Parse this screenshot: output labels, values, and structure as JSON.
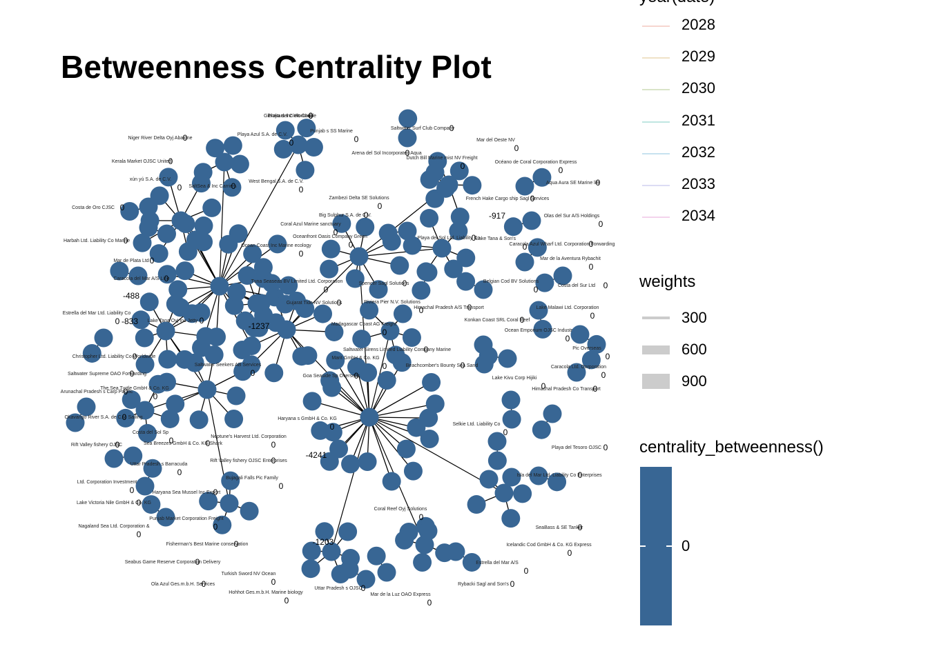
{
  "title": "Betweenness Centrality Plot",
  "legend_year": {
    "title": "year(date)",
    "items": [
      {
        "label": "2028",
        "color": "#f6d5cf"
      },
      {
        "label": "2029",
        "color": "#efe2c6"
      },
      {
        "label": "2030",
        "color": "#d9e4c8"
      },
      {
        "label": "2031",
        "color": "#bfe6e1"
      },
      {
        "label": "2032",
        "color": "#c6e2ef"
      },
      {
        "label": "2033",
        "color": "#dcdcf4"
      },
      {
        "label": "2034",
        "color": "#f3d3ec"
      }
    ]
  },
  "legend_weights": {
    "title": "weights",
    "items": [
      {
        "label": "300",
        "size": 4
      },
      {
        "label": "600",
        "size": 13
      },
      {
        "label": "900",
        "size": 22
      }
    ]
  },
  "legend_centrality": {
    "title": "centrality_betweenness()",
    "color": "#386694",
    "tick": "0"
  },
  "network": {
    "node_color": "#386694",
    "edge_color": "#000000",
    "hubs": [
      {
        "label": "Playa del Cielo Corp",
        "score": "0"
      },
      {
        "label": "Punjab s SS Marine",
        "score": "0"
      },
      {
        "label": "Saltwater Surf Club Company",
        "score": "0"
      },
      {
        "label": "Mar del Oeste NV",
        "score": "0"
      },
      {
        "label": "Niger River Delta Oyj Abalone",
        "score": "0"
      },
      {
        "label": "Playa Azul S.A. de C.V.",
        "score": "0"
      },
      {
        "label": "Arena del Sol Incorporated Aqua",
        "score": "0"
      },
      {
        "label": "Océano de Coral Corporation Express",
        "score": "0"
      },
      {
        "label": "Kerala Market OJSC United",
        "score": "0"
      },
      {
        "label": "Dutch Bill Marine mist NV Freight",
        "score": "0"
      },
      {
        "label": "Aqua Aura SE Marine life",
        "score": "0"
      },
      {
        "label": "xún yú S.A. de C.V.",
        "score": "0"
      },
      {
        "label": "SaltSea & Inc Carriers",
        "score": "0"
      },
      {
        "label": "West Bengal S.A. de C.V.",
        "score": "0"
      },
      {
        "label": "Costa de Oro CJSC",
        "score": "0"
      },
      {
        "label": "Zambezi Delta SE Solutions",
        "score": "0"
      },
      {
        "label": "French Hake Cargo ship Sagl Services",
        "score": "0"
      },
      {
        "label": "Olas del Sur A/S Holdings",
        "score": "0"
      },
      {
        "label": "Big Sulphur S.A. de C.V.",
        "score": "0"
      },
      {
        "label": "Coral Azul Marine sanctuary",
        "score": "0"
      },
      {
        "label": "Harbah Ltd. Liability Co Marine",
        "score": "0"
      },
      {
        "label": "Oceanfront Oasis Company Green",
        "score": "0"
      },
      {
        "label": "Playa del Sol Ltd. Liability Co",
        "score": "0"
      },
      {
        "label": "Lake Tana & Son's",
        "score": "0"
      },
      {
        "label": "Mar de Plata Ltd",
        "score": "0"
      },
      {
        "label": "Ocean Coast Inc Marine ecology",
        "score": "0"
      },
      {
        "label": "Caracola Azul Wharf Ltd. Corporation Forwarding",
        "score": "0"
      },
      {
        "label": "Mar de la Aventura Rybachit",
        "score": "0"
      },
      {
        "label": "Caracola del Mar A/S Line",
        "score": "0"
      },
      {
        "label": "Tuna Seaseas BV Limited Ltd. Corporation",
        "score": "0"
      },
      {
        "label": "Spencer Sagl Solutions",
        "score": "0"
      },
      {
        "label": "Belgian Cod BV Solutions",
        "score": "0"
      },
      {
        "label": "Costa del Sur Ltd",
        "score": "0"
      },
      {
        "label": "Estrella del Mar Ltd. Liability Co",
        "score": "0"
      },
      {
        "label": "Gujarat Tide NV Solutions",
        "score": "0"
      },
      {
        "label": "Riviera Pier N.V. Solutions",
        "score": "0"
      },
      {
        "label": "Himachal Pradesh A/S Transport",
        "score": "0"
      },
      {
        "label": "Lake Malawi Ltd. Corporation",
        "score": "0"
      },
      {
        "label": "Lake Tana Oyj Inc Jetty",
        "score": "0"
      },
      {
        "label": "Madagascar Coast AG Freight",
        "score": "0"
      },
      {
        "label": "Konkan Coast SRL Coral Reef",
        "score": "0"
      },
      {
        "label": "Ocean Emporium OJSC Industr",
        "score": "0"
      },
      {
        "label": "Christopher Ltd. Liability Co Worldwide",
        "score": "0"
      },
      {
        "label": "Saltwater Seekers AB Services",
        "score": "0"
      },
      {
        "label": "Saltwater Sirens Limited Liability Company Marine",
        "score": "0"
      },
      {
        "label": "Pic Overseas",
        "score": "0"
      },
      {
        "label": "Saltwater Supreme OAO Forwarding",
        "score": "0"
      },
      {
        "label": "Marit GmbH & Co. KG",
        "score": "0"
      },
      {
        "label": "Beachcomber's Bounty Sea Sand",
        "score": "0"
      },
      {
        "label": "Caracola Ltd. Corporation",
        "score": "0"
      },
      {
        "label": "Arunachal Pradesh s Carp Pacific",
        "score": "0"
      },
      {
        "label": "The Sea Turtle GmbH & Co. KG",
        "score": "0"
      },
      {
        "label": "Goa Seaside Sp Overseas",
        "score": "0"
      },
      {
        "label": "Lake Kivu Corp Hijiki",
        "score": "0"
      },
      {
        "label": "Okavango River S.A. de C.V. Sailing",
        "score": "0"
      },
      {
        "label": "Haryana s GmbH & Co. KG",
        "score": "0"
      },
      {
        "label": "Himachal Pradesh Co Transport",
        "score": "0"
      },
      {
        "label": "Costa del Sol Sp",
        "score": "0"
      },
      {
        "label": "Sea Breezes GmbH & Co. KG Shark",
        "score": "0"
      },
      {
        "label": "Selkie Ltd. Liability Co",
        "score": "0"
      },
      {
        "label": "Rift Valley fishery OJSC",
        "score": "0"
      },
      {
        "label": "Neptune's Harvest Ltd. Corporation",
        "score": "0"
      },
      {
        "label": "Playa del Tesoro OJSC",
        "score": "0"
      },
      {
        "label": "Uttar Pradesh s Barracuda",
        "score": "0"
      },
      {
        "label": "Rift Valley fishery OJSC Enterprises",
        "score": "0"
      },
      {
        "label": "Bujagali Falls Pic Family",
        "score": "0"
      },
      {
        "label": "Isla del Mar Ltd. Liability Co Enterprises",
        "score": "0"
      },
      {
        "label": "Ltd. Corporation Investment",
        "score": "0"
      },
      {
        "label": "Haryana Sea Mussel Inc Export",
        "score": "0"
      },
      {
        "label": "Coral Reef Oyj Solutions",
        "score": "0"
      },
      {
        "label": "Lake Victoria Nile GmbH & Co. KG",
        "score": "0"
      },
      {
        "label": "Punjab Market Corporation Freight",
        "score": "0"
      },
      {
        "label": "SeaBass & SE Tanker",
        "score": "0"
      },
      {
        "label": "Nagaland Sea Ltd. Corporation &",
        "score": "0"
      },
      {
        "label": "Fisherman's Best Marine conservation",
        "score": "0"
      },
      {
        "label": "Icelandic Cod GmbH & Co. KG Express",
        "score": "0"
      },
      {
        "label": "Seabus Game Reserve Corporation Delivery",
        "score": "0"
      },
      {
        "label": "Estrella del Mar A/S",
        "score": "0"
      },
      {
        "label": "Ola Azul Ges.m.b.H. Services",
        "score": "0"
      },
      {
        "label": "Turkish Sword NV Ocean",
        "score": "0"
      },
      {
        "label": "Rybacki Sagl and Son's",
        "score": "0"
      },
      {
        "label": "Hohhot Ges.m.b.H. Marine biology",
        "score": "0"
      },
      {
        "label": "Uttar Pradesh s OJSC",
        "score": "0"
      },
      {
        "label": "Mar de la Luz OAO Express",
        "score": "0"
      },
      {
        "label": "Gibraltars Inc Worldwide",
        "score": "0"
      }
    ],
    "extra_scores": [
      "-488",
      "-833",
      "-4241",
      "-1203",
      "-1237",
      "-917"
    ]
  }
}
